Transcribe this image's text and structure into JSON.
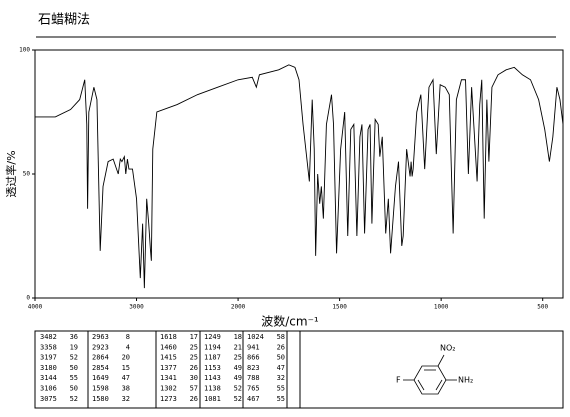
{
  "chart_data": {
    "type": "line",
    "title": "石蜡糊法",
    "x_label": "波数/cm⁻¹",
    "y_label": "透过率/%",
    "xlim": [
      4000,
      400
    ],
    "xscale": {
      "break": 2000,
      "factor": 2
    },
    "xticks": [
      4000,
      3000,
      2000,
      1500,
      1000,
      500
    ],
    "ylim": [
      0,
      100
    ],
    "yticks": [
      0,
      50,
      100
    ],
    "color": "#000000",
    "x": [
      4000,
      3800,
      3650,
      3560,
      3510,
      3490,
      3482,
      3470,
      3420,
      3390,
      3358,
      3330,
      3280,
      3230,
      3197,
      3180,
      3160,
      3144,
      3120,
      3106,
      3090,
      3075,
      3040,
      3000,
      2963,
      2940,
      2923,
      2900,
      2880,
      2864,
      2854,
      2840,
      2800,
      2600,
      2400,
      2200,
      2000,
      1930,
      1910,
      1895,
      1800,
      1750,
      1720,
      1700,
      1680,
      1649,
      1635,
      1625,
      1618,
      1608,
      1598,
      1590,
      1580,
      1565,
      1540,
      1530,
      1515,
      1495,
      1475,
      1460,
      1445,
      1430,
      1415,
      1400,
      1390,
      1377,
      1360,
      1350,
      1341,
      1325,
      1310,
      1302,
      1290,
      1273,
      1260,
      1249,
      1225,
      1210,
      1194,
      1187,
      1170,
      1153,
      1148,
      1143,
      1138,
      1120,
      1100,
      1081,
      1060,
      1040,
      1024,
      1005,
      980,
      960,
      941,
      925,
      900,
      880,
      866,
      850,
      823,
      810,
      800,
      788,
      775,
      765,
      750,
      720,
      680,
      640,
      600,
      560,
      520,
      490,
      467,
      450,
      430,
      415,
      400
    ],
    "values": [
      73,
      73,
      76,
      80,
      88,
      70,
      36,
      75,
      85,
      80,
      19,
      45,
      55,
      56,
      52,
      50,
      56,
      55,
      57,
      50,
      56,
      52,
      52,
      40,
      8,
      30,
      4,
      40,
      30,
      20,
      15,
      60,
      75,
      78,
      82,
      85,
      88,
      89,
      85,
      90,
      92,
      94,
      93,
      88,
      70,
      47,
      80,
      60,
      17,
      50,
      38,
      45,
      32,
      70,
      82,
      70,
      18,
      60,
      75,
      25,
      68,
      70,
      25,
      65,
      70,
      26,
      68,
      70,
      30,
      72,
      70,
      57,
      65,
      26,
      40,
      18,
      45,
      55,
      21,
      25,
      60,
      49,
      55,
      49,
      52,
      75,
      82,
      52,
      85,
      88,
      58,
      86,
      85,
      82,
      26,
      80,
      88,
      88,
      50,
      85,
      47,
      78,
      88,
      32,
      80,
      55,
      85,
      90,
      92,
      93,
      90,
      88,
      80,
      68,
      55,
      65,
      85,
      80,
      70
    ]
  },
  "peak_table": [
    [
      [
        3482,
        36
      ],
      [
        3358,
        19
      ],
      [
        3197,
        52
      ],
      [
        3180,
        50
      ],
      [
        3144,
        55
      ],
      [
        3106,
        50
      ],
      [
        3075,
        52
      ]
    ],
    [
      [
        2963,
        8
      ],
      [
        2923,
        4
      ],
      [
        2864,
        20
      ],
      [
        2854,
        15
      ],
      [
        1649,
        47
      ],
      [
        1598,
        38
      ],
      [
        1580,
        32
      ]
    ],
    [
      [
        1618,
        17
      ],
      [
        1460,
        25
      ],
      [
        1415,
        25
      ],
      [
        1377,
        26
      ],
      [
        1341,
        30
      ],
      [
        1302,
        57
      ],
      [
        1273,
        26
      ]
    ],
    [
      [
        1249,
        18
      ],
      [
        1194,
        21
      ],
      [
        1187,
        25
      ],
      [
        1153,
        49
      ],
      [
        1143,
        49
      ],
      [
        1138,
        52
      ],
      [
        1081,
        52
      ]
    ],
    [
      [
        1024,
        58
      ],
      [
        941,
        26
      ],
      [
        866,
        50
      ],
      [
        823,
        47
      ],
      [
        788,
        32
      ],
      [
        765,
        55
      ],
      [
        467,
        55
      ]
    ]
  ],
  "structure": {
    "labels": [
      "NO₂",
      "NH₂",
      "F"
    ]
  }
}
